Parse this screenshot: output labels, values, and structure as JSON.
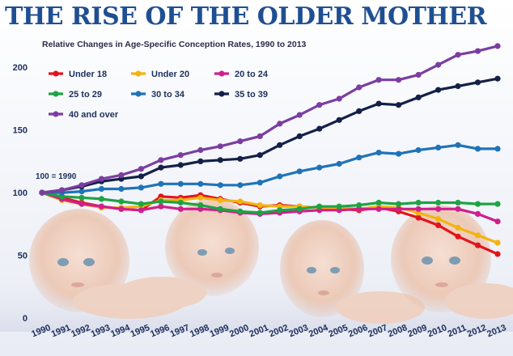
{
  "headline": "THE RISE OF THE OLDER MOTHER",
  "colors": {
    "headline": "#1f4f92",
    "axis_text": "#1d2f5c"
  },
  "chart_data": {
    "type": "line",
    "title": "Relative Changes in Age-Specific Conception Rates, 1990 to 2013",
    "xlabel": "",
    "ylabel": "",
    "ylim": [
      0,
      215
    ],
    "yticks": [
      0,
      50,
      100,
      150,
      200
    ],
    "grid": false,
    "legend_position": "top-left",
    "annotation": "100 = 1990",
    "x": [
      "1990",
      "1991",
      "1992",
      "1993",
      "1994",
      "1995",
      "1996",
      "1997",
      "1998",
      "1999",
      "2000",
      "2001",
      "2002",
      "2003",
      "2004",
      "2005",
      "2006",
      "2007",
      "2008",
      "2009",
      "2010",
      "2011",
      "2012",
      "2013"
    ],
    "series": [
      {
        "name": "Under 18",
        "color": "#e3141b",
        "values": [
          100,
          96,
          92,
          89,
          87,
          86,
          97,
          96,
          98,
          95,
          92,
          89,
          90,
          89,
          88,
          87,
          86,
          88,
          85,
          80,
          74,
          65,
          58,
          51
        ]
      },
      {
        "name": "Under 20",
        "color": "#f2b411",
        "values": [
          100,
          94,
          91,
          88,
          88,
          89,
          94,
          94,
          96,
          94,
          93,
          90,
          89,
          89,
          88,
          88,
          87,
          89,
          88,
          84,
          79,
          72,
          66,
          60
        ]
      },
      {
        "name": "20 to 24",
        "color": "#cf1f8c",
        "values": [
          100,
          95,
          91,
          89,
          87,
          86,
          89,
          87,
          87,
          86,
          84,
          83,
          84,
          85,
          86,
          86,
          87,
          87,
          87,
          87,
          87,
          87,
          83,
          77
        ]
      },
      {
        "name": "25 to 29",
        "color": "#1da443",
        "values": [
          100,
          97,
          96,
          95,
          93,
          91,
          93,
          92,
          90,
          87,
          85,
          84,
          86,
          87,
          89,
          89,
          90,
          92,
          91,
          92,
          92,
          92,
          91,
          91
        ]
      },
      {
        "name": "30 to 34",
        "color": "#1f73b7",
        "values": [
          100,
          100,
          101,
          103,
          103,
          104,
          107,
          107,
          107,
          106,
          106,
          108,
          113,
          117,
          120,
          123,
          128,
          132,
          131,
          134,
          136,
          138,
          135,
          135
        ]
      },
      {
        "name": "35 to 39",
        "color": "#132048",
        "values": [
          100,
          102,
          105,
          109,
          111,
          113,
          120,
          122,
          125,
          126,
          127,
          130,
          138,
          145,
          151,
          158,
          165,
          171,
          170,
          176,
          182,
          185,
          188,
          191
        ]
      },
      {
        "name": "40 and over",
        "color": "#7b3ea0",
        "values": [
          100,
          102,
          106,
          111,
          114,
          119,
          126,
          130,
          134,
          137,
          141,
          145,
          155,
          162,
          170,
          175,
          184,
          190,
          190,
          194,
          202,
          210,
          213,
          217
        ]
      }
    ]
  }
}
